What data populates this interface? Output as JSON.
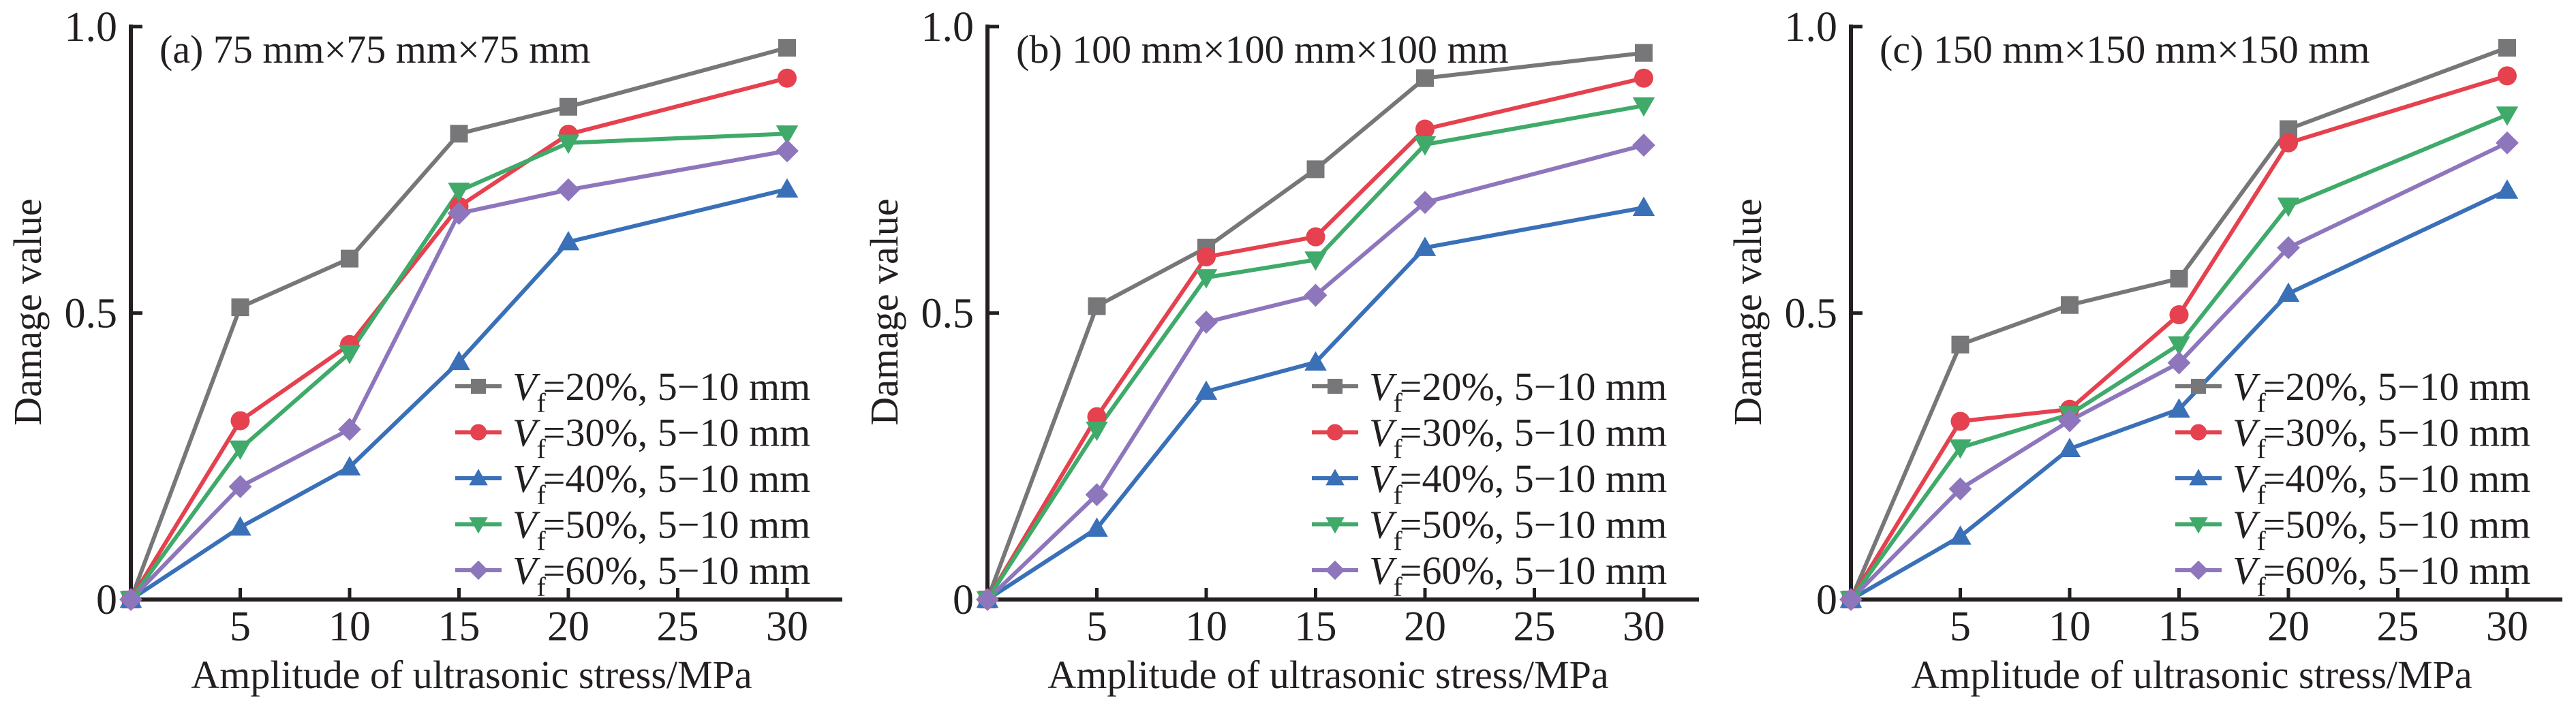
{
  "chart_data": [
    {
      "type": "line",
      "title": "(a) 75 mm×75 mm×75 mm",
      "xlabel": "Amplitude of ultrasonic stress/MPa",
      "ylabel": "Damage value",
      "x": [
        0,
        5,
        10,
        15,
        20,
        30
      ],
      "x_ticks": [
        5,
        10,
        15,
        20,
        25,
        30
      ],
      "x_tick_labels": [
        "5",
        "10",
        "15",
        "20",
        "25",
        "30"
      ],
      "xlim": [
        0,
        32.5
      ],
      "y_ticks": [
        0,
        0.5,
        1.0
      ],
      "y_tick_labels": [
        "0",
        "0.5",
        "1.0"
      ],
      "ylim": [
        0,
        1.0
      ],
      "grid": false,
      "legend_position": "bottom-right",
      "series": [
        {
          "name": "Vf=20%, 5−10 mm",
          "values": [
            0,
            0.51,
            0.595,
            0.813,
            0.86,
            0.963
          ]
        },
        {
          "name": "Vf=30%, 5−10 mm",
          "values": [
            0,
            0.312,
            0.445,
            0.686,
            0.812,
            0.91
          ]
        },
        {
          "name": "Vf=40%, 5−10 mm",
          "values": [
            0,
            0.126,
            0.231,
            0.415,
            0.624,
            0.716
          ]
        },
        {
          "name": "Vf=50%, 5−10 mm",
          "values": [
            0,
            0.263,
            0.43,
            0.713,
            0.797,
            0.813
          ]
        },
        {
          "name": "Vf=60%, 5−10 mm",
          "values": [
            0,
            0.197,
            0.297,
            0.674,
            0.715,
            0.783
          ]
        }
      ]
    },
    {
      "type": "line",
      "title": "(b) 100 mm×100 mm×100 mm",
      "xlabel": "Amplitude of ultrasonic stress/MPa",
      "ylabel": "Damage value",
      "x": [
        0,
        5,
        10,
        15,
        20,
        30
      ],
      "x_ticks": [
        5,
        10,
        15,
        20,
        25,
        30
      ],
      "x_tick_labels": [
        "5",
        "10",
        "15",
        "20",
        "25",
        "30"
      ],
      "xlim": [
        0,
        32.5
      ],
      "y_ticks": [
        0,
        0.5,
        1.0
      ],
      "y_tick_labels": [
        "0",
        "0.5",
        "1.0"
      ],
      "ylim": [
        0,
        1.0
      ],
      "grid": false,
      "legend_position": "bottom-right",
      "series": [
        {
          "name": "Vf=20%, 5−10 mm",
          "values": [
            0,
            0.512,
            0.614,
            0.751,
            0.91,
            0.954
          ]
        },
        {
          "name": "Vf=30%, 5−10 mm",
          "values": [
            0,
            0.319,
            0.598,
            0.633,
            0.821,
            0.91
          ]
        },
        {
          "name": "Vf=40%, 5−10 mm",
          "values": [
            0,
            0.124,
            0.363,
            0.414,
            0.614,
            0.684
          ]
        },
        {
          "name": "Vf=50%, 5−10 mm",
          "values": [
            0,
            0.296,
            0.562,
            0.593,
            0.794,
            0.862
          ]
        },
        {
          "name": "Vf=60%, 5−10 mm",
          "values": [
            0,
            0.183,
            0.484,
            0.531,
            0.693,
            0.793
          ]
        }
      ]
    },
    {
      "type": "line",
      "title": "(c) 150 mm×150 mm×150 mm",
      "xlabel": "Amplitude of ultrasonic stress/MPa",
      "ylabel": "Damage value",
      "x": [
        0,
        5,
        10,
        15,
        20,
        30
      ],
      "x_ticks": [
        5,
        10,
        15,
        20,
        25,
        30
      ],
      "x_tick_labels": [
        "5",
        "10",
        "15",
        "20",
        "25",
        "30"
      ],
      "xlim": [
        0,
        32.5
      ],
      "y_ticks": [
        0,
        0.5,
        1.0
      ],
      "y_tick_labels": [
        "0",
        "0.5",
        "1.0"
      ],
      "ylim": [
        0,
        1.0
      ],
      "grid": false,
      "legend_position": "bottom-right",
      "series": [
        {
          "name": "Vf=20%, 5−10 mm",
          "values": [
            0,
            0.445,
            0.514,
            0.56,
            0.821,
            0.963
          ]
        },
        {
          "name": "Vf=30%, 5−10 mm",
          "values": [
            0,
            0.311,
            0.332,
            0.497,
            0.797,
            0.914
          ]
        },
        {
          "name": "Vf=40%, 5−10 mm",
          "values": [
            0,
            0.11,
            0.263,
            0.332,
            0.534,
            0.714
          ]
        },
        {
          "name": "Vf=50%, 5−10 mm",
          "values": [
            0,
            0.265,
            0.323,
            0.445,
            0.687,
            0.846
          ]
        },
        {
          "name": "Vf=60%, 5−10 mm",
          "values": [
            0,
            0.193,
            0.312,
            0.413,
            0.614,
            0.797
          ]
        }
      ]
    }
  ],
  "legend_entries": [
    {
      "symbol": "V",
      "subscript": "f",
      "rest": "=20%, 5−10 mm",
      "marker": "square",
      "color": "#77777a"
    },
    {
      "symbol": "V",
      "subscript": "f",
      "rest": "=30%, 5−10 mm",
      "marker": "circle",
      "color": "#e5414e"
    },
    {
      "symbol": "V",
      "subscript": "f",
      "rest": "=40%, 5−10 mm",
      "marker": "triangle-up",
      "color": "#3a70b8"
    },
    {
      "symbol": "V",
      "subscript": "f",
      "rest": "=50%, 5−10 mm",
      "marker": "triangle-down",
      "color": "#3faa6a"
    },
    {
      "symbol": "V",
      "subscript": "f",
      "rest": "=60%, 5−10 mm",
      "marker": "diamond",
      "color": "#8e76bd"
    }
  ]
}
